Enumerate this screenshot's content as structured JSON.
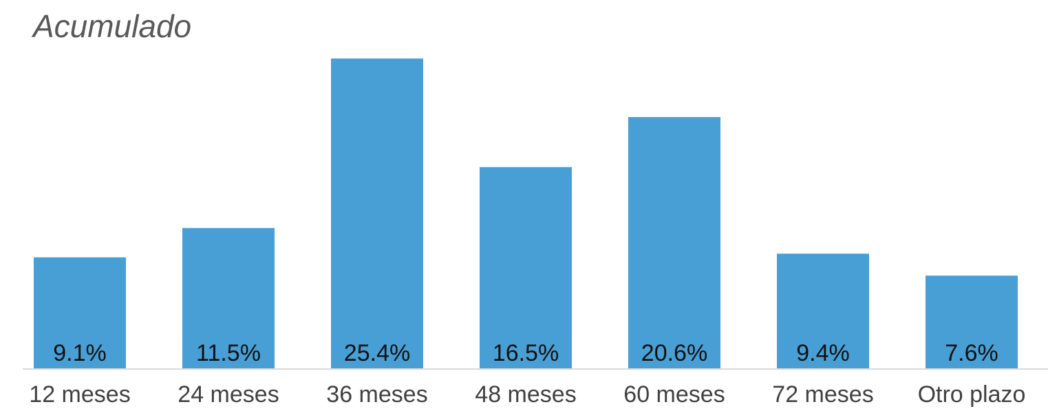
{
  "chart_data": {
    "type": "bar",
    "title": "Acumulado",
    "categories": [
      "12 meses",
      "24 meses",
      "36 meses",
      "48 meses",
      "60 meses",
      "72 meses",
      "Otro plazo"
    ],
    "values": [
      9.1,
      11.5,
      25.4,
      16.5,
      20.6,
      9.4,
      7.6
    ],
    "data_labels": [
      "9.1%",
      "11.5%",
      "25.4%",
      "16.5%",
      "20.6%",
      "9.4%",
      "7.6%"
    ],
    "unit": "%",
    "ylim": [
      0,
      25.4
    ],
    "bar_color": "#479FD5",
    "axis_color": "#D9D9D9",
    "grid": false,
    "legend": "none",
    "data_label_position": "inside-base"
  }
}
